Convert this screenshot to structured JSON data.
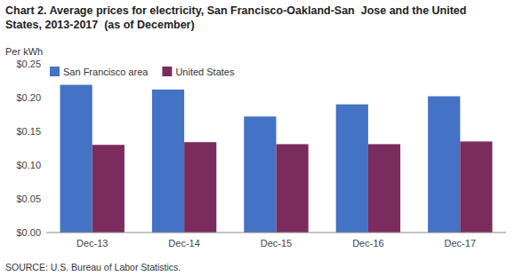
{
  "chart_data": {
    "type": "bar",
    "title": [
      "Chart 2. Average prices for electricity, San Francisco-Oakland-San  Jose and the United",
      "States, 2013-2017  (as of December)"
    ],
    "ylabel": "Per kWh",
    "annotations": [
      "SOURCE: U.S. Bureau of Labor Statistics."
    ],
    "categories": [
      "Dec-13",
      "Dec-14",
      "Dec-15",
      "Dec-16",
      "Dec-17"
    ],
    "series": [
      {
        "name": "San Francisco area",
        "color": "#4472C4",
        "values": [
          0.219,
          0.212,
          0.172,
          0.19,
          0.202
        ]
      },
      {
        "name": "United States",
        "color": "#7B2C5E",
        "values": [
          0.13,
          0.134,
          0.131,
          0.131,
          0.135
        ]
      }
    ],
    "ylim": [
      0,
      0.25
    ],
    "yticks": [
      {
        "value": 0.0,
        "label": "$0.00"
      },
      {
        "value": 0.05,
        "label": "$0.05"
      },
      {
        "value": 0.1,
        "label": "$0.10"
      },
      {
        "value": 0.15,
        "label": "$0.15"
      },
      {
        "value": 0.2,
        "label": "$0.20"
      },
      {
        "value": 0.25,
        "label": "$0.25"
      }
    ],
    "grid": false,
    "legend": "top-left"
  }
}
